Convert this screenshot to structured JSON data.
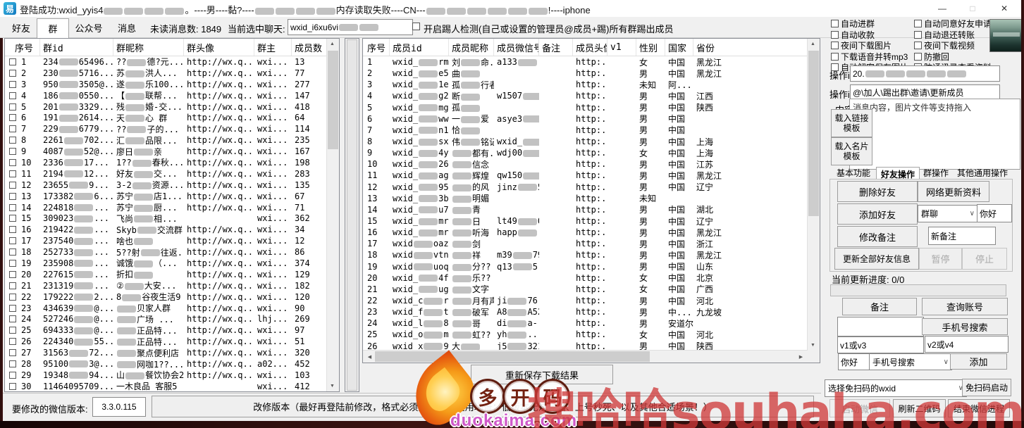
{
  "window": {
    "icon": "易",
    "title": "登陆成功:wxid_yyis4{b}{b}{b}{b}。----男----黏?----{b}{b}{b}{b}内存读取失败----CN---{b}{b}{b}{b}{b}{b}!----iphone",
    "minimize": "—",
    "maximize": "□",
    "close": "✕"
  },
  "toolbar": {
    "tabs": [
      "好友",
      "群",
      "公众号",
      "消息"
    ],
    "active_tab": "群",
    "unread_label": "未读消息数: 1849",
    "current_chat_label": "当前选中聊天:",
    "current_chat_value": "wxid_i6xu6vi{b}{b}",
    "kick_checkbox_label": "开启踢人检测(自己或设置的管理员@成员+踢)所有群踢出成员"
  },
  "group_table": {
    "headers": [
      "序号",
      "群id",
      "群昵称",
      "群头像",
      "群主",
      "成员数"
    ],
    "rows": [
      [
        "1",
        "234{b}65496...",
        "??{b}德?元...",
        "http://wx.q...",
        "wxi...",
        "13"
      ],
      [
        "2",
        "230{b}5716...",
        "苏{b}洪人...",
        "http://wx.q...",
        "wxi...",
        "77"
      ],
      [
        "3",
        "950{b}3505@...",
        "遂{b}乐100...",
        "http://wx.q...",
        "wxi...",
        "277"
      ],
      [
        "4",
        "186{b}0550...",
        "【{b}联帮...",
        "http://wx.q...",
        "wxi...",
        "147"
      ],
      [
        "5",
        "201{b}3329...",
        "残{b}婚-交...",
        "http://wx.q...",
        "wxi...",
        "418"
      ],
      [
        "6",
        "191{b}2614...",
        "天{b}心 群",
        "http://wx.q...",
        "wxi...",
        "64"
      ],
      [
        "7",
        "229{b}6779...",
        "??{b}子的...",
        "http://wx.q...",
        "wxi...",
        "114"
      ],
      [
        "8",
        "2261{b}702...",
        "汇{b}品限...",
        "http://wx.q...",
        "wxi...",
        "235"
      ],
      [
        "9",
        "4087{b}52@...",
        "廖日{b}亲",
        "http://wx.q...",
        "wxi...",
        "167"
      ],
      [
        "10",
        "2336{b}17...",
        "1??{b}春秋...",
        "http://wx.q...",
        "wxi...",
        "198"
      ],
      [
        "11",
        "2194{b}12...",
        "好友{b}交...",
        "http://wx.q...",
        "wxi...",
        "283"
      ],
      [
        "12",
        "23655{b}9...",
        "3-2{b}资源...",
        "http://wx.q...",
        "wxi...",
        "135"
      ],
      [
        "13",
        "173382{b}6...",
        "苏宁{b}店1...",
        "http://wx.q...",
        "wxi...",
        "67"
      ],
      [
        "14",
        "224818{b}...",
        "苏宁{b}厨...",
        "http://wx.q...",
        "wxi...",
        "71"
      ],
      [
        "15",
        "309023{b}...",
        "飞尚{b}相...",
        "",
        "wxi...",
        "362"
      ],
      [
        "16",
        "219422{b}...",
        "Skyb{b}交流群",
        "http://wx.q...",
        "wxi...",
        "34"
      ],
      [
        "17",
        "237540{b}...",
        "啥也{b}",
        "http://wx.q...",
        "wxi...",
        "12"
      ],
      [
        "18",
        "252733{b}...",
        "5??射{b}往返...",
        "http://wx.q...",
        "wxi...",
        "86"
      ],
      [
        "19",
        "235908{b}...",
        "诚饿{b}（...",
        "http://wx.q...",
        "wxi...",
        "374"
      ],
      [
        "20",
        "227615{b}...",
        "折扣{b}",
        "http://wx.q...",
        "wxi...",
        "129"
      ],
      [
        "21",
        "231319{b}...",
        "②{b}大安...",
        "http://wx.q...",
        "wxi...",
        "182"
      ],
      [
        "22",
        "179222{b}2...",
        "8{b}谷夜生活9",
        "http://wx.q...",
        "wxi...",
        "120"
      ],
      [
        "23",
        "434639{b}@...",
        "{b}贝家人群",
        "http://wx.q...",
        "wxi...",
        "90"
      ],
      [
        "24",
        "527246{b}@...",
        "{b}广场 ...",
        "http://wx.q...",
        "lhj...",
        "269"
      ],
      [
        "25",
        "694333{b}@...",
        "{b}正品特...",
        "http://wx.q...",
        "wxi...",
        "97"
      ],
      [
        "26",
        "224340{b}55...",
        "{b}正品特...",
        "http://wx.q...",
        "wxi...",
        "51"
      ],
      [
        "27",
        "31563{b}72...",
        "{b}聚点便利店",
        "http://wx.q...",
        "wxi...",
        "320"
      ],
      [
        "28",
        "95100{b}3@...",
        "{b}网咖1??...",
        "http://wx.q...",
        "a02...",
        "452"
      ],
      [
        "29",
        "19348{b}94...",
        "山{b}餐饮协会2",
        "http://wx.q...",
        "wxi...",
        "103"
      ],
      [
        "30",
        "11464095709...",
        "一木良品 客服5",
        "",
        "wxi...",
        "412"
      ]
    ]
  },
  "member_table": {
    "headers": [
      "序号",
      "成员id",
      "成员昵称",
      "成员微信号",
      "备注",
      "成员头像",
      "v1",
      "性别",
      "国家",
      "省份"
    ],
    "rows": [
      [
        "1",
        "wxid_{b}rm...",
        "刘{b}命...",
        "a133{b}...",
        "",
        "http:...",
        "",
        "女",
        "中国",
        "黑龙江"
      ],
      [
        "2",
        "wxid_{b}e5...",
        "曲{b}",
        "",
        "",
        "http:...",
        "",
        "男",
        "中国",
        "黑龙江"
      ],
      [
        "3",
        "wxid_{b}1e...",
        "孤{b}行者",
        "",
        "",
        "http:...",
        "",
        "未知",
        "阿...",
        ""
      ],
      [
        "4",
        "wxid_{b}g2...",
        "断{b}",
        "w1507{b}..",
        "",
        "http:...",
        "",
        "男",
        "中国",
        "江西"
      ],
      [
        "5",
        "wxid_{b}mg...",
        "孤{b}",
        "",
        "",
        "http:...",
        "",
        "男",
        "中国",
        "陕西"
      ],
      [
        "6",
        "wxid_{b}ww...",
        "一{b}爱",
        "asye3{b}..",
        "",
        "http:...",
        "",
        "男",
        "中国",
        ""
      ],
      [
        "7",
        "wxid_{b}n1...",
        "恰{b}",
        "",
        "",
        "http:...",
        "",
        "男",
        "中国",
        ""
      ],
      [
        "8",
        "wxid_{b}sx...",
        "伟{b}铭记",
        "wxid_{b}...",
        "",
        "http:...",
        "",
        "男",
        "中国",
        "上海"
      ],
      [
        "9",
        "wxid_{b}4y...",
        "{b}都有...",
        "wdj00{b}7",
        "",
        "http:...",
        "",
        "女",
        "中国",
        "上海"
      ],
      [
        "10",
        "wxid_{b}26...",
        "{b}信念",
        "",
        "",
        "http:...",
        "",
        "男",
        "中国",
        "江苏"
      ],
      [
        "11",
        "wxid_{b}ag...",
        "{b}辉煌",
        "qw150{b}...",
        "",
        "http:...",
        "",
        "男",
        "中国",
        "黑龙江"
      ],
      [
        "12",
        "wxid_{b}95...",
        "{b}的风",
        "jinz{b}5",
        "",
        "http:...",
        "",
        "男",
        "中国",
        "辽宁"
      ],
      [
        "13",
        "wxid_{b}3b...",
        "{b}明媚",
        "",
        "",
        "http:...",
        "",
        "未知",
        "",
        ""
      ],
      [
        "14",
        "wxid_{b}u7...",
        "{b}青",
        "",
        "",
        "http:...",
        "",
        "男",
        "中国",
        "湖北"
      ],
      [
        "15",
        "wxid_{b}mre...",
        "{b}日",
        "lt49{b}0061",
        "",
        "http:...",
        "",
        "男",
        "中国",
        "辽宁"
      ],
      [
        "16",
        "wxid_{b}mr1...",
        "{b}听海",
        "happ{b}...",
        "",
        "http:...",
        "",
        "男",
        "中国",
        "黑龙江"
      ],
      [
        "17",
        "wxid{b}oaz...",
        "{b}剑",
        "",
        "",
        "http:...",
        "",
        "男",
        "中国",
        "浙江"
      ],
      [
        "18",
        "wxid{b}vtn...",
        "{b}祥",
        "m39{b}79",
        "",
        "http:...",
        "",
        "男",
        "中国",
        "黑龙江"
      ],
      [
        "19",
        "wxid{b}uoq...",
        "{b}分??",
        "q13{b}5...",
        "",
        "http:...",
        "",
        "男",
        "中国",
        "山东"
      ],
      [
        "20",
        "wxid_{b}4fu...",
        "{b}乐??",
        "",
        "",
        "http:...",
        "",
        "女",
        "中国",
        "北京"
      ],
      [
        "21",
        "wxid_{b}ug...",
        "{b}文字",
        "",
        "",
        "http:...",
        "",
        "女",
        "中国",
        "广西"
      ],
      [
        "22",
        "wxid_c{b}r..",
        "{b}月有声",
        "ji{b}76...",
        "",
        "http:...",
        "",
        "男",
        "中国",
        "河北"
      ],
      [
        "23",
        "wxid_f{b}t..",
        "{b}破军",
        "A8{b}A520",
        "",
        "http:...",
        "",
        "男",
        "中...",
        "九龙坡"
      ],
      [
        "24",
        "wxid_l{b}8...",
        "{b}哥",
        "di{b}a-...",
        "",
        "http:...",
        "",
        "男",
        "安道尔",
        ""
      ],
      [
        "25",
        "wxid_o{b}m...",
        "{b}虹??",
        "yh{b}...",
        "",
        "http:...",
        "",
        "女",
        "中国",
        "河北"
      ],
      [
        "26",
        "wxid_x{b}9w...",
        "大{b}",
        "j5{b}321",
        "",
        "http:...",
        "",
        "男",
        "中国",
        "陕西"
      ]
    ]
  },
  "resave_button": "重新保存下载结果",
  "right_panel": {
    "options": [
      [
        "自动进群",
        "自动同意好友申请"
      ],
      [
        "自动收款",
        "自动退还转账"
      ],
      [
        "夜间下载图片",
        "夜间下载视频"
      ],
      [
        "下载语音并转mp3",
        "防撤回"
      ],
      [
        "自动解密保存图片",
        "防通讯录查看资料"
      ]
    ],
    "op_id1_label": "操作id1:",
    "op_id1_value": "20.{b}{b}{b}{b}{b}",
    "op_id2_label": "操作id2:",
    "op_id2_value": "@\\加人\\踢出群\\邀请\\更新成员",
    "content_label": "内容:",
    "content_placeholder": "消息内容，图片文件等支持拖入",
    "load_link_btn": "载入链接模板",
    "load_card_btn": "载入名片模板",
    "tabs": [
      "基本功能",
      "好友操作",
      "群操作",
      "其他通用操作"
    ],
    "active_tab": "好友操作",
    "friend_ops": {
      "delete": "删除好友",
      "net_update": "网络更新资料",
      "add": "添加好友",
      "add_source": "群聊",
      "greet": "你好",
      "edit_remark": "修改备注",
      "new_remark": "新备注",
      "update_all": "更新全部好友信息",
      "pause": "暂停",
      "stop": "停止"
    },
    "progress_label": "当前更新进度: 0/0",
    "remark_btn": "备注",
    "query_btn": "查询账号",
    "phone_search_btn": "手机号搜索",
    "v1v3_value": "v1或v3",
    "v2v4_value": "v2或v4",
    "hello_value": "你好",
    "search_mode": "手机号搜索",
    "add_btn": "添加",
    "wxid_select": "选择免扫码的wxid",
    "no_scan_btn": "免扫码启动",
    "start_wx_btn": "启动微信",
    "refresh_qr_btn": "刷新二维码",
    "kill_wx_btn": "结束微信进程"
  },
  "bottom_bar": {
    "version_label": "要修改的微信版本:",
    "version_value": "3.3.0.115",
    "modify_btn": "改修版本（最好再登陆前修改，格式必须为x.x.x.x 适用场景：低版本无法登陆、上号秒死、以及其他合适场景！）"
  },
  "watermarks": {
    "logo_chars": [
      "多",
      "开",
      "码"
    ],
    "logo_domain": "duokaima.com",
    "red_text": "搜哈哈souhaha.com"
  }
}
